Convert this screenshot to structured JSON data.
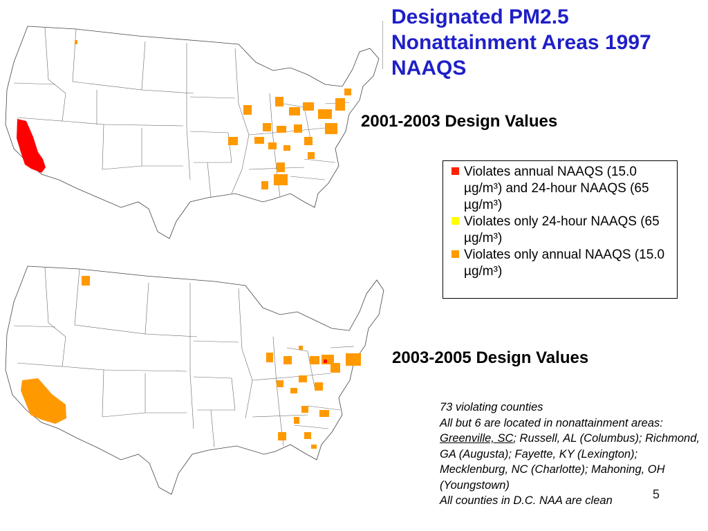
{
  "title": "Designated PM2.5 Nonattainment Areas 1997 NAAQS",
  "map_top": {
    "heading": "2001-2003 Design Values"
  },
  "map_bottom": {
    "heading": "2003-2005 Design Values"
  },
  "legend": {
    "items": [
      {
        "color": "#ff2200",
        "text": "Violates annual NAAQS (15.0 µg/m³) and 24-hour NAAQS (65 µg/m³)"
      },
      {
        "color": "#ffff00",
        "text": "Violates only 24-hour NAAQS (65 µg/m³)"
      },
      {
        "color": "#ff9900",
        "text": "Violates only annual NAAQS (15.0 µg/m³)"
      }
    ]
  },
  "notes": {
    "line1": "73 violating counties",
    "line2_prefix": "All but 6 are located in nonattainment areas: ",
    "line2_link": "Greenville, SC",
    "line2_rest": "; Russell, AL (Columbus); Richmond, GA (Augusta); Fayette, KY (Lexington); Mecklenburg, NC (Charlotte); Mahoning, OH (Youngstown)",
    "line3": "All counties in D.C. NAA are clean"
  },
  "slide_number": "5",
  "colors": {
    "title": "#1f1fc8",
    "red": "#ff2200",
    "orange": "#ff9900",
    "yellow": "#ffff00"
  }
}
